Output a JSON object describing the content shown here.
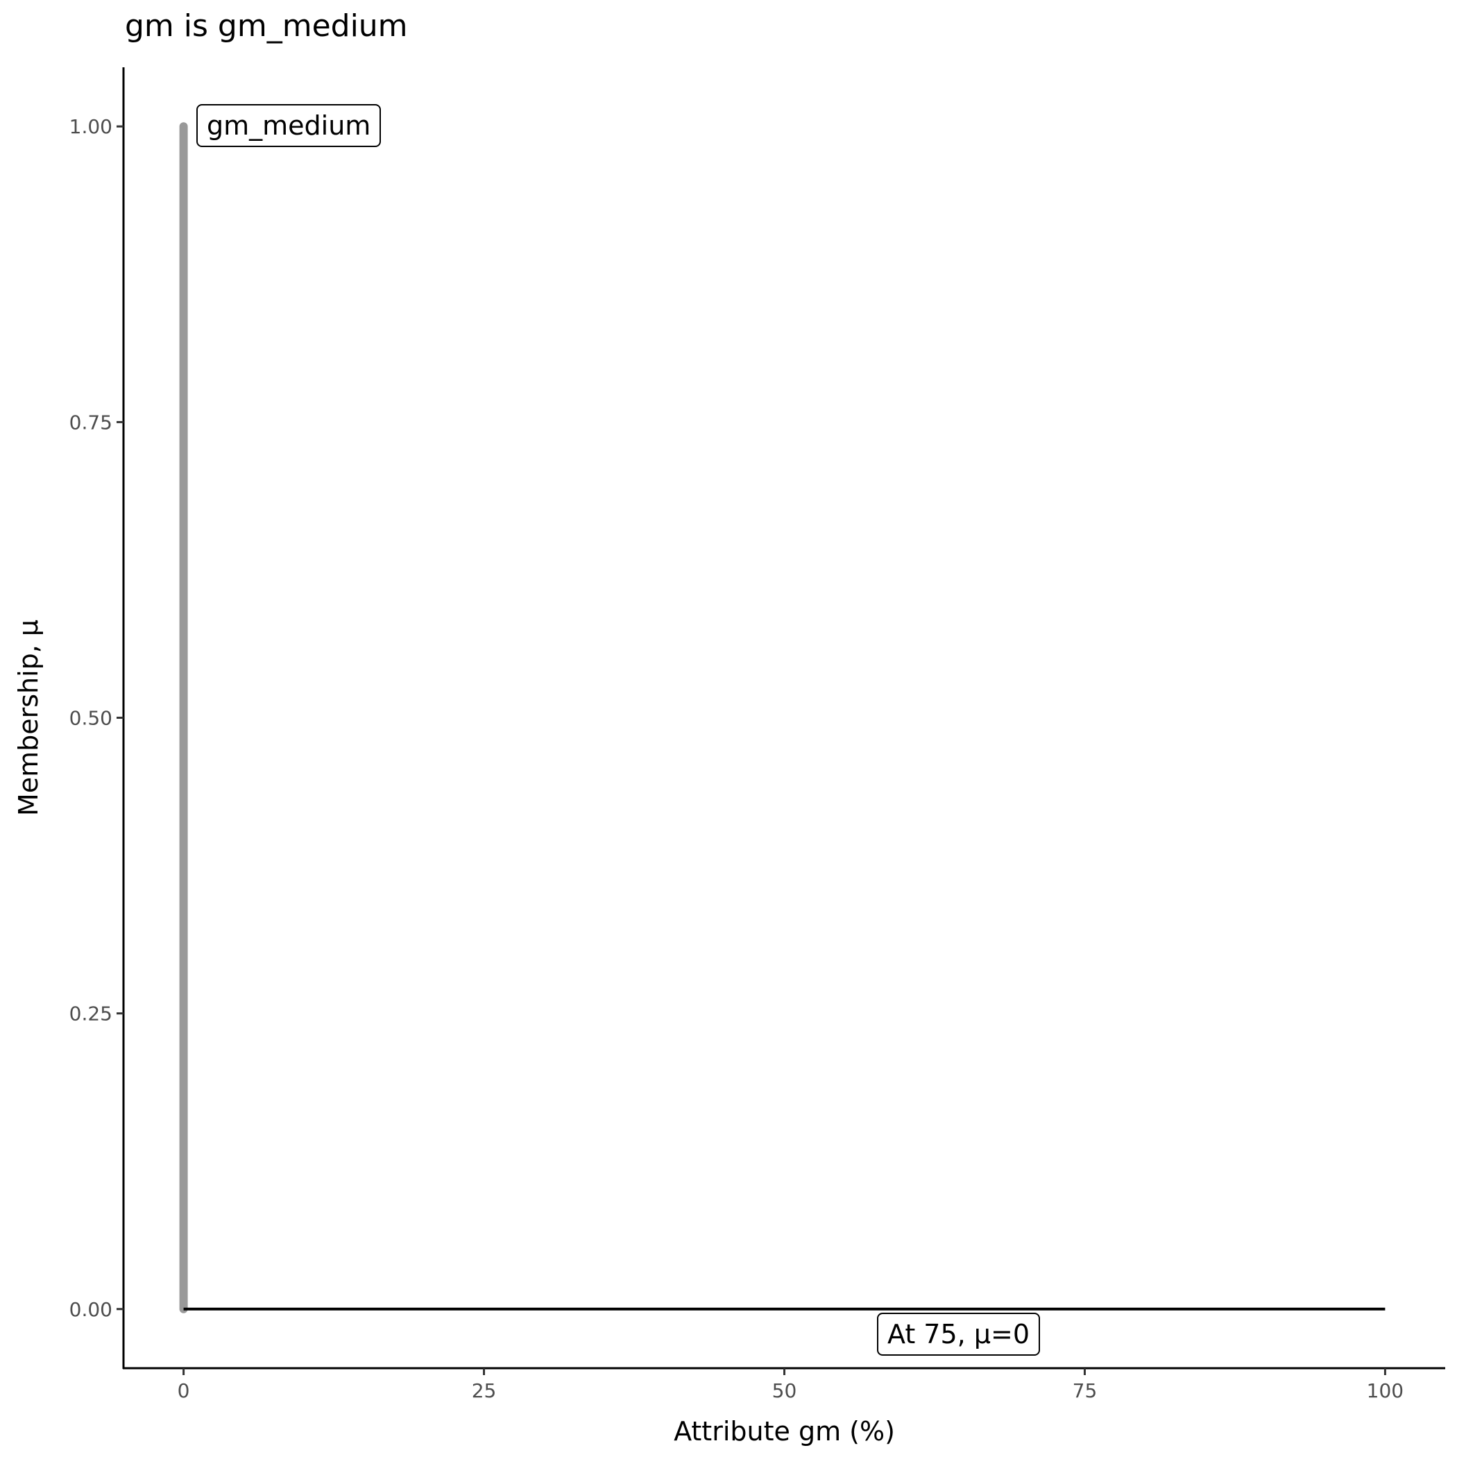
{
  "chart_data": {
    "type": "line",
    "title": "gm is gm_medium",
    "xlabel": "Attribute gm (%)",
    "ylabel": "Membership, μ",
    "xlim": [
      -5,
      105
    ],
    "ylim": [
      -0.05,
      1.05
    ],
    "x_ticks": [
      "0",
      "25",
      "50",
      "75",
      "100"
    ],
    "x_tick_values": [
      0,
      25,
      50,
      75,
      100
    ],
    "y_ticks": [
      "0.00",
      "0.25",
      "0.50",
      "0.75",
      "1.00"
    ],
    "y_tick_values": [
      0,
      0.25,
      0.5,
      0.75,
      1
    ],
    "grid": false,
    "series": [
      {
        "color": "#999999",
        "x": [
          0,
          0
        ],
        "y": [
          0,
          1
        ]
      },
      {
        "color": "#000000",
        "x": [
          0,
          100
        ],
        "y": [
          0,
          0
        ]
      }
    ],
    "annotations": [
      {
        "text": "gm_medium"
      },
      {
        "text": "At 75, μ=0"
      }
    ]
  }
}
